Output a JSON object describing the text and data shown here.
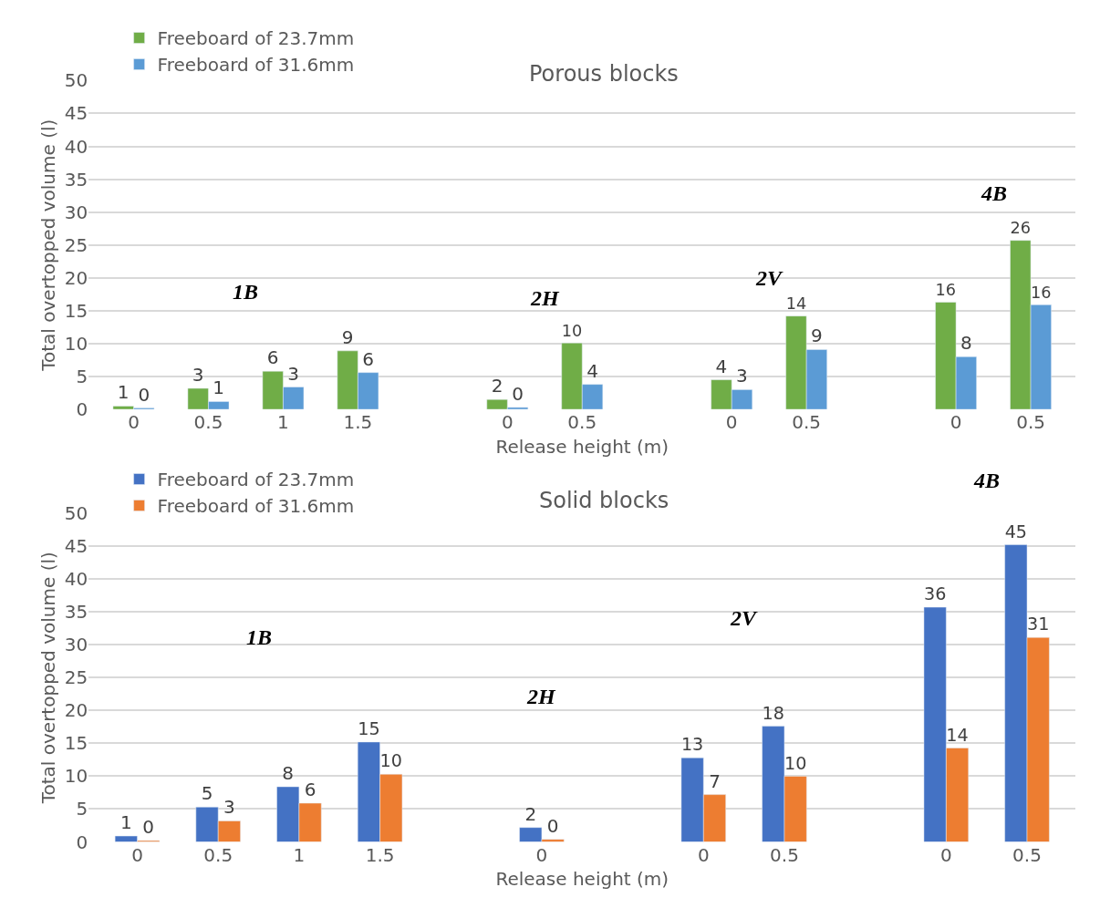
{
  "chart_data": [
    {
      "type": "bar",
      "title": "Porous blocks",
      "xlabel": "Release height (m)",
      "ylabel": "Total overtopped volume (l)",
      "categories": [
        "0",
        "0.5",
        "1",
        "1.5",
        null,
        "0",
        "0.5",
        null,
        "0",
        "0.5",
        null,
        "0",
        "0.5"
      ],
      "series": [
        {
          "name": "Freeboard of 23.7mm",
          "color": "#70ad47",
          "values": [
            0.5,
            3.2,
            5.8,
            8.9,
            null,
            1.5,
            10.1,
            null,
            4.5,
            14.2,
            null,
            16.3,
            25.7
          ],
          "value_labels": [
            "1",
            "3",
            "6",
            "9",
            null,
            "2",
            "10",
            null,
            "4",
            "14",
            null,
            "16",
            "26"
          ]
        },
        {
          "name": "Freeboard of 31.6mm",
          "color": "#5b9bd5",
          "values": [
            0.2,
            1.2,
            3.4,
            5.6,
            null,
            0.3,
            3.8,
            null,
            3.0,
            9.1,
            null,
            8.0,
            15.9
          ],
          "value_labels": [
            "0",
            "1",
            "3",
            "6",
            null,
            "0",
            "4",
            null,
            "3",
            "9",
            null,
            "8",
            "16"
          ]
        }
      ],
      "annotations": [
        "1B",
        "2H",
        "2V",
        "4B"
      ],
      "ylim": [
        0,
        50
      ],
      "yticks": [
        0,
        5,
        10,
        15,
        20,
        25,
        30,
        35,
        40,
        45,
        50
      ],
      "grid": "y",
      "legend": "top left"
    },
    {
      "type": "bar",
      "title": "Solid blocks",
      "xlabel": "Release height (m)",
      "ylabel": "Total overtopped volume (l)",
      "categories": [
        "0",
        "0.5",
        "1",
        "1.5",
        null,
        "0",
        null,
        "0",
        "0.5",
        null,
        "0",
        "0.5"
      ],
      "series": [
        {
          "name": "Freeboard of 23.7mm",
          "color": "#4472c4",
          "values": [
            0.9,
            5.3,
            8.4,
            15.2,
            null,
            2.2,
            null,
            12.8,
            17.6,
            null,
            35.7,
            45.2
          ],
          "value_labels": [
            "1",
            "5",
            "8",
            "15",
            null,
            "2",
            null,
            "13",
            "18",
            null,
            "36",
            "45"
          ]
        },
        {
          "name": "Freeboard of 31.6mm",
          "color": "#ed7d31",
          "values": [
            0.2,
            3.2,
            5.9,
            10.3,
            null,
            0.4,
            null,
            7.2,
            10.0,
            null,
            14.3,
            31.1
          ],
          "value_labels": [
            "0",
            "3",
            "6",
            "10",
            null,
            "0",
            null,
            "7",
            "10",
            null,
            "14",
            "31"
          ]
        }
      ],
      "annotations": [
        "1B",
        "2H",
        "2V",
        "4B"
      ],
      "ylim": [
        0,
        50
      ],
      "yticks": [
        0,
        5,
        10,
        15,
        20,
        25,
        30,
        35,
        40,
        45,
        50
      ],
      "grid": "y",
      "legend": "top left"
    }
  ]
}
